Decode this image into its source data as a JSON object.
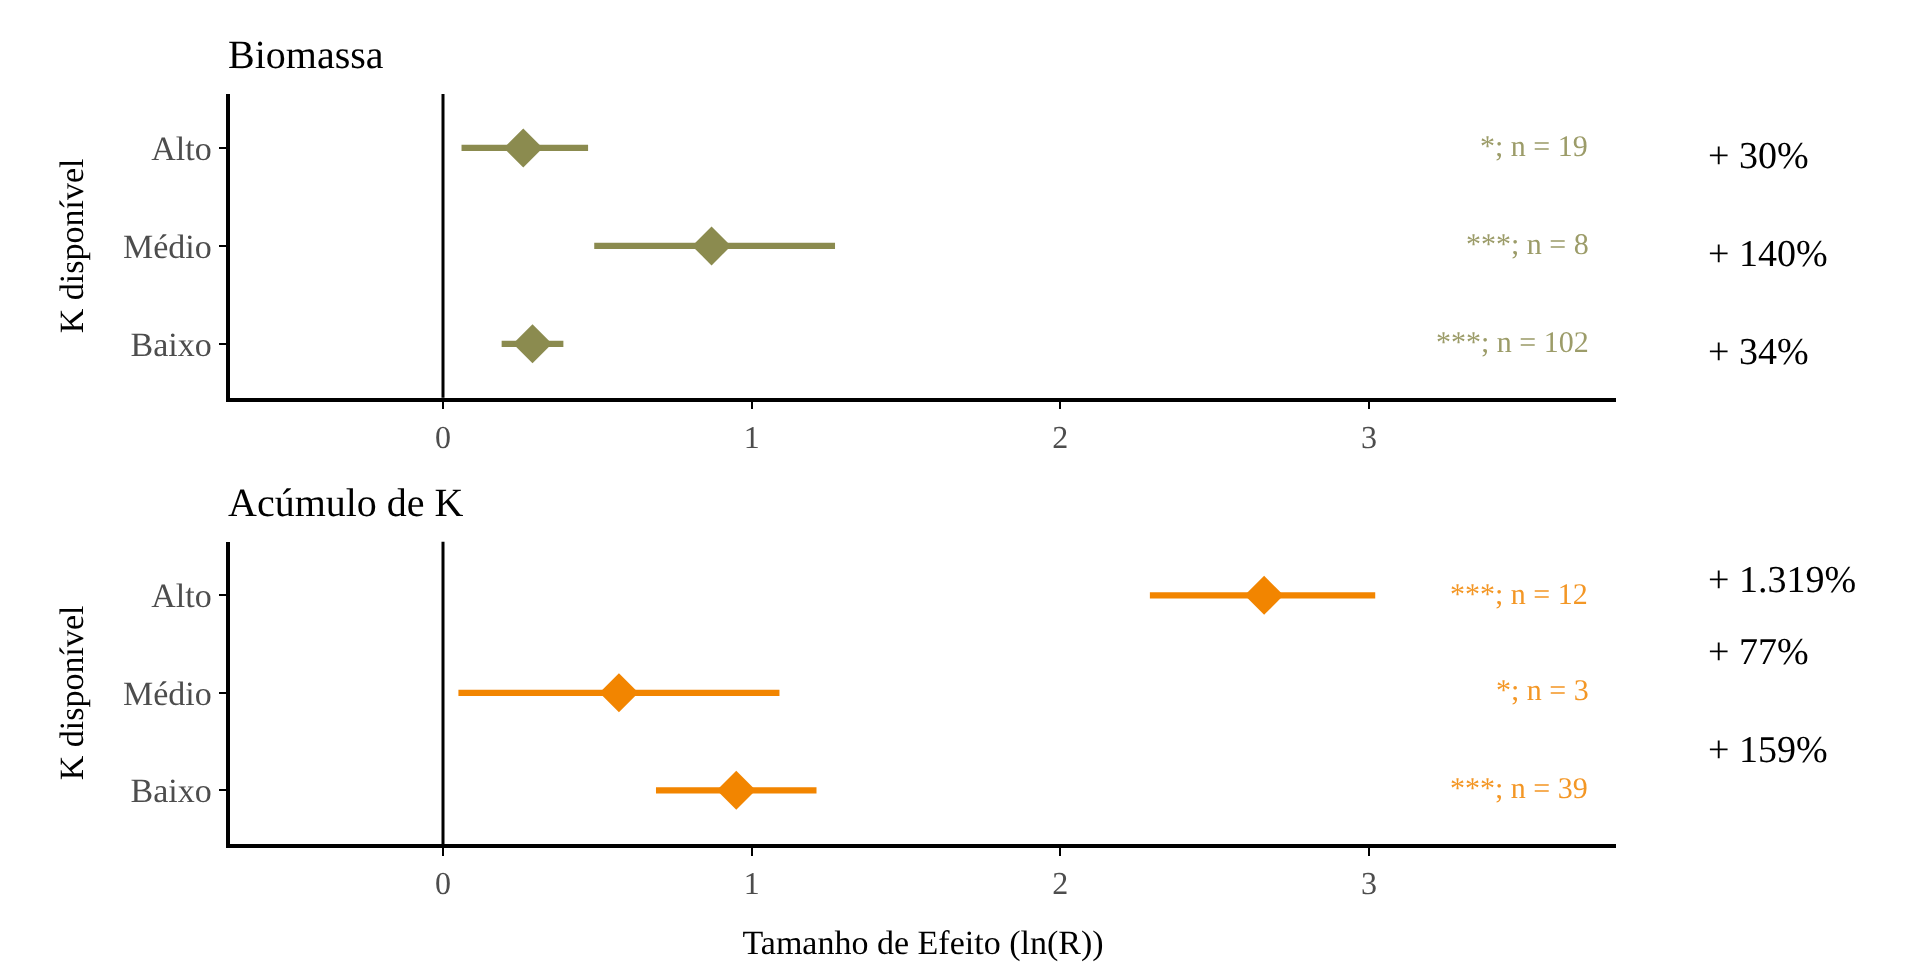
{
  "chart_data": [
    {
      "type": "scatter",
      "title": "Biomassa",
      "ylabel": "K disponível",
      "orientation": "horizontal",
      "categories": [
        "Alto",
        "Médio",
        "Baixo"
      ],
      "series": [
        {
          "color": "#8b8b4f",
          "values": [
            0.26,
            0.87,
            0.29
          ],
          "errors": [
            [
              0.06,
              0.47
            ],
            [
              0.49,
              1.27
            ],
            [
              0.19,
              0.39
            ]
          ]
        }
      ],
      "marker": "diamond",
      "xlim": [
        -0.69,
        3.8
      ],
      "xticks": [
        0,
        1,
        2,
        3
      ],
      "ref_lines": [
        {
          "axis": "x",
          "value": 0,
          "color": "#000000"
        }
      ],
      "annotations": [
        "*; n = 19",
        "***; n = 8",
        "***; n = 102",
        "+ 30%",
        "+ 140%",
        "+ 34%"
      ]
    },
    {
      "type": "scatter",
      "title": "Acúmulo de K",
      "ylabel": "K disponível",
      "xlabel": "Tamanho de Efeito (ln(R))",
      "orientation": "horizontal",
      "categories": [
        "Alto",
        "Médio",
        "Baixo"
      ],
      "series": [
        {
          "color": "#f28500",
          "values": [
            2.66,
            0.57,
            0.95
          ],
          "errors": [
            [
              2.29,
              3.02
            ],
            [
              0.05,
              1.09
            ],
            [
              0.69,
              1.21
            ]
          ]
        }
      ],
      "marker": "diamond",
      "xlim": [
        -0.69,
        3.8
      ],
      "xticks": [
        0,
        1,
        2,
        3
      ],
      "ref_lines": [
        {
          "axis": "x",
          "value": 0,
          "color": "#000000"
        }
      ],
      "annotations": [
        "***; n = 12",
        "*; n = 3",
        "***; n = 39",
        "+ 1.319%",
        "+ 77%",
        "+ 159%"
      ]
    }
  ]
}
